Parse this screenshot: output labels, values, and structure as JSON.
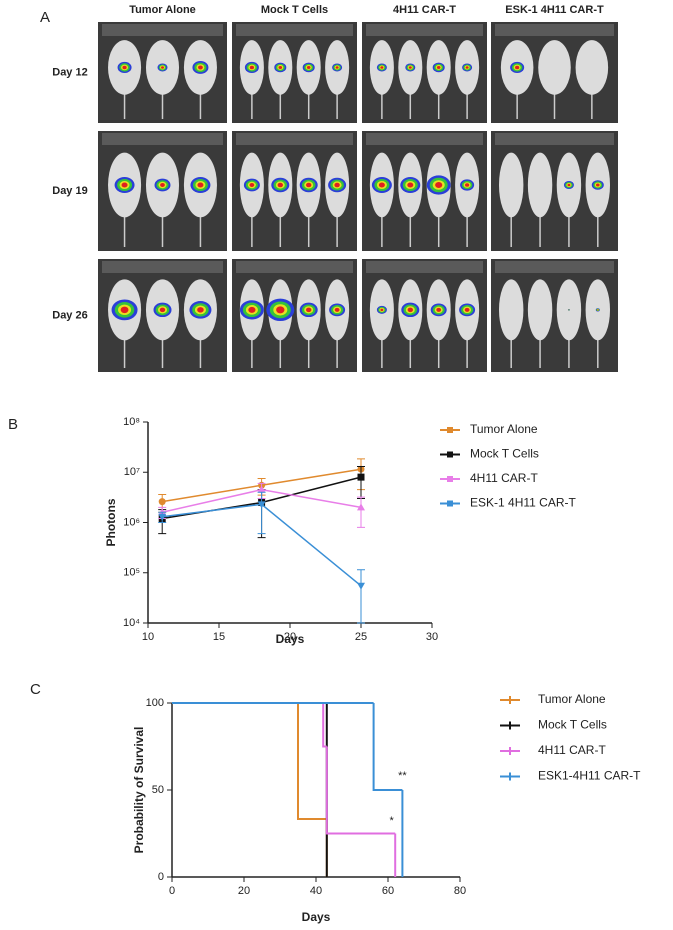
{
  "image_grid": {
    "panel": "A",
    "columns": [
      "Tumor Alone",
      "Mock T Cells",
      "4H11 CAR-T",
      "ESK-1 4H11 CAR-T"
    ],
    "rows": [
      "Day 12",
      "Day 19",
      "Day 26"
    ]
  },
  "chart_data": [
    {
      "type": "line",
      "panel": "B",
      "x_label": "Days",
      "y_label": "Photons",
      "log_y": true,
      "x": [
        11,
        18,
        25
      ],
      "xlim": [
        10,
        30
      ],
      "xticks": [
        10,
        15,
        20,
        25,
        30
      ],
      "ylim": [
        10000,
        100000000
      ],
      "yticks": [
        {
          "value": 10000,
          "label": "10⁴"
        },
        {
          "value": 100000,
          "label": "10⁵"
        },
        {
          "value": 1000000,
          "label": "10⁶"
        },
        {
          "value": 10000000,
          "label": "10⁷"
        },
        {
          "value": 100000000,
          "label": "10⁸"
        }
      ],
      "series": [
        {
          "name": "Tumor Alone",
          "color": "#e08a2e",
          "marker": "circle",
          "values": [
            2600000,
            5500000,
            11500000
          ],
          "errors": [
            1000000,
            2000000,
            7000000
          ]
        },
        {
          "name": "Mock T Cells",
          "color": "#111111",
          "marker": "square",
          "values": [
            1200000,
            2500000,
            8000000
          ],
          "errors": [
            600000,
            2000000,
            5000000
          ]
        },
        {
          "name": "4H11 CAR-T",
          "color": "#e87ee8",
          "marker": "triangle-up",
          "values": [
            1600000,
            4500000,
            2000000
          ],
          "errors": [
            400000,
            1500000,
            1200000
          ]
        },
        {
          "name": "ESK-1 4H11 CAR-T",
          "color": "#3a8fd6",
          "marker": "triangle-down",
          "values": [
            1300000,
            2300000,
            55000
          ],
          "errors": [
            300000,
            1700000,
            60000
          ]
        }
      ]
    },
    {
      "type": "step",
      "panel": "C",
      "x_label": "Days",
      "y_label": "Probability of Survival",
      "xlim": [
        0,
        80
      ],
      "xticks": [
        0,
        20,
        40,
        60,
        80
      ],
      "ylim": [
        0,
        100
      ],
      "yticks": [
        0,
        50,
        100
      ],
      "series": [
        {
          "name": "Tumor Alone",
          "color": "#e08a2e",
          "x": [
            0,
            35,
            43
          ],
          "values": [
            100,
            33.3,
            0
          ]
        },
        {
          "name": "Mock T Cells",
          "color": "#111111",
          "x": [
            0,
            43
          ],
          "values": [
            100,
            0
          ]
        },
        {
          "name": "4H11 CAR-T",
          "color": "#e06ee0",
          "x": [
            0,
            42,
            43,
            62
          ],
          "values": [
            100,
            75,
            25,
            0
          ]
        },
        {
          "name": "ESK1-4H11 CAR-T",
          "color": "#3a8fd6",
          "x": [
            0,
            56,
            64
          ],
          "values": [
            100,
            50,
            0
          ]
        }
      ],
      "annotations": [
        {
          "text": "*",
          "x": 61,
          "y": 32
        },
        {
          "text": "**",
          "x": 64,
          "y": 58
        }
      ]
    }
  ]
}
